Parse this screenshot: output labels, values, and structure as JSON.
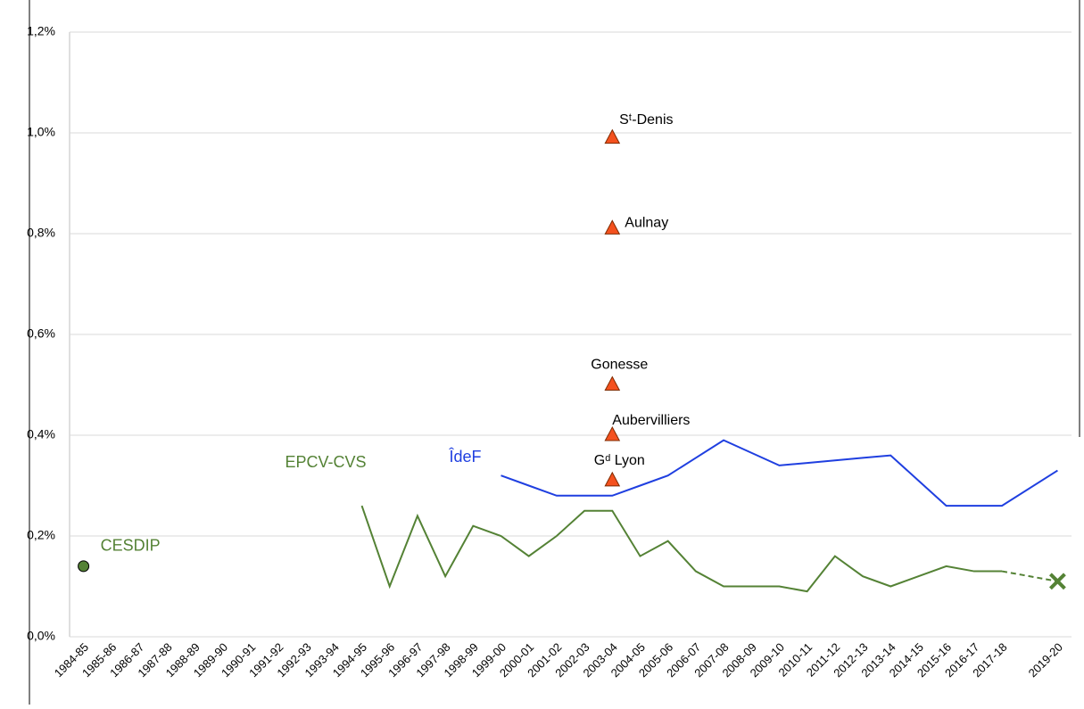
{
  "chart_data": {
    "type": "line",
    "categories": [
      "1984-85",
      "1985-86",
      "1986-87",
      "1987-88",
      "1988-89",
      "1989-90",
      "1990-91",
      "1991-92",
      "1992-93",
      "1993-94",
      "1994-95",
      "1995-96",
      "1996-97",
      "1997-98",
      "1998-99",
      "1999-00",
      "2000-01",
      "2001-02",
      "2002-03",
      "2003-04",
      "2004-05",
      "2005-06",
      "2006-07",
      "2007-08",
      "2008-09",
      "2009-10",
      "2010-11",
      "2011-12",
      "2012-13",
      "2013-14",
      "2014-15",
      "2015-16",
      "2016-17",
      "2017-18",
      null,
      "2019-20"
    ],
    "ylim": [
      0,
      1.2
    ],
    "yticks": [
      {
        "value": 0,
        "label": "0,0%"
      },
      {
        "value": 0.2,
        "label": "0,2%"
      },
      {
        "value": 0.4,
        "label": "0,4%"
      },
      {
        "value": 0.6,
        "label": "0,6%"
      },
      {
        "value": 0.8,
        "label": "0,8%"
      },
      {
        "value": 1.0,
        "label": "1,0%"
      },
      {
        "value": 1.2,
        "label": "1,2%"
      }
    ],
    "grid": true,
    "series": [
      {
        "name": "CESDIP",
        "color": "#548235",
        "marker": "circle",
        "values": [
          0.14,
          null,
          null,
          null,
          null,
          null,
          null,
          null,
          null,
          null,
          null,
          null,
          null,
          null,
          null,
          null,
          null,
          null,
          null,
          null,
          null,
          null,
          null,
          null,
          null,
          null,
          null,
          null,
          null,
          null,
          null,
          null,
          null,
          null,
          null,
          null
        ]
      },
      {
        "name": "EPCV-CVS",
        "color": "#548235",
        "gap_style": "dashed",
        "last_marker": "x",
        "values": [
          null,
          null,
          null,
          null,
          null,
          null,
          null,
          null,
          null,
          null,
          0.26,
          0.1,
          0.24,
          0.12,
          0.22,
          0.2,
          0.16,
          0.2,
          0.25,
          0.25,
          0.16,
          0.19,
          0.13,
          0.1,
          0.1,
          0.1,
          0.09,
          0.16,
          0.12,
          0.1,
          0.12,
          0.14,
          0.13,
          0.13,
          null,
          0.11
        ]
      },
      {
        "name": "ÎdeF",
        "color": "#1f3fe0",
        "gap_style": "solid",
        "values": [
          null,
          null,
          null,
          null,
          null,
          null,
          null,
          null,
          null,
          null,
          null,
          null,
          null,
          null,
          null,
          0.32,
          0.3,
          0.28,
          0.28,
          0.28,
          0.3,
          0.32,
          0.355,
          0.39,
          0.365,
          0.34,
          0.345,
          0.35,
          0.355,
          0.36,
          0.31,
          0.26,
          0.26,
          0.26,
          null,
          0.33
        ]
      }
    ],
    "point_color": "#f4511e",
    "points": [
      {
        "name": "Sᵗ-Denis",
        "x": "2003-04",
        "value": 0.99
      },
      {
        "name": "Aulnay",
        "x": "2003-04",
        "value": 0.81
      },
      {
        "name": "Gonesse",
        "x": "2003-04",
        "value": 0.5
      },
      {
        "name": "Aubervilliers",
        "x": "2003-04",
        "value": 0.4
      },
      {
        "name": "Gᵈ Lyon",
        "x": "2003-04",
        "value": 0.31
      }
    ]
  }
}
